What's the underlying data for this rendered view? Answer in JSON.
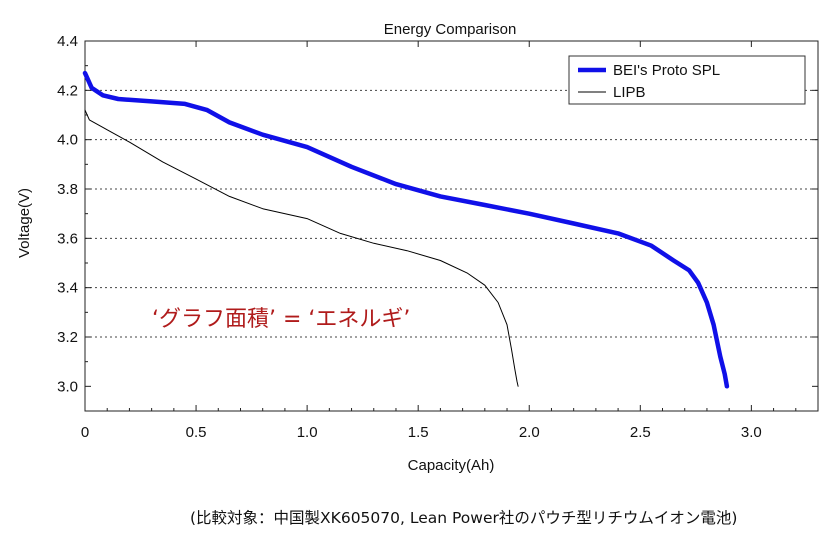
{
  "chart_data": {
    "type": "line",
    "title": "Energy Comparison",
    "xlabel": "Capacity(Ah)",
    "ylabel": "Voltage(V)",
    "xlim": [
      0,
      3.3
    ],
    "ylim": [
      2.9,
      4.4
    ],
    "xticks": [
      "0",
      "0.5",
      "1.0",
      "1.5",
      "2.0",
      "2.5",
      "3.0"
    ],
    "yticks": [
      "3.0",
      "3.2",
      "3.4",
      "3.6",
      "3.8",
      "4.0",
      "4.2",
      "4.4"
    ],
    "grid": "horizontal dotted",
    "legend_position": "top-right",
    "series": [
      {
        "name": "BEI's Proto SPL",
        "color": "#1010e8",
        "x": [
          0,
          0.03,
          0.08,
          0.15,
          0.3,
          0.45,
          0.55,
          0.65,
          0.8,
          1.0,
          1.2,
          1.4,
          1.6,
          1.8,
          2.0,
          2.2,
          2.4,
          2.55,
          2.65,
          2.72,
          2.76,
          2.8,
          2.83,
          2.86,
          2.88,
          2.89
        ],
        "y": [
          4.27,
          4.21,
          4.18,
          4.165,
          4.155,
          4.145,
          4.12,
          4.07,
          4.02,
          3.97,
          3.89,
          3.82,
          3.77,
          3.735,
          3.7,
          3.66,
          3.62,
          3.57,
          3.51,
          3.47,
          3.42,
          3.34,
          3.25,
          3.12,
          3.05,
          3.0
        ]
      },
      {
        "name": "LIPB",
        "color": "#000000",
        "x": [
          0,
          0.02,
          0.1,
          0.2,
          0.35,
          0.5,
          0.65,
          0.8,
          1.0,
          1.15,
          1.3,
          1.45,
          1.6,
          1.72,
          1.8,
          1.86,
          1.9,
          1.92,
          1.935,
          1.945,
          1.95
        ],
        "y": [
          4.12,
          4.08,
          4.04,
          3.99,
          3.91,
          3.84,
          3.77,
          3.72,
          3.68,
          3.62,
          3.58,
          3.55,
          3.51,
          3.46,
          3.41,
          3.34,
          3.25,
          3.15,
          3.07,
          3.02,
          3.0
        ]
      }
    ],
    "annotations": [
      "‘グラフ面積’ = ‘エネルギ’"
    ]
  },
  "footnote": "(比較対象：中国製XK605070, Lean Power社のパウチ型リチウムイオン電池)"
}
